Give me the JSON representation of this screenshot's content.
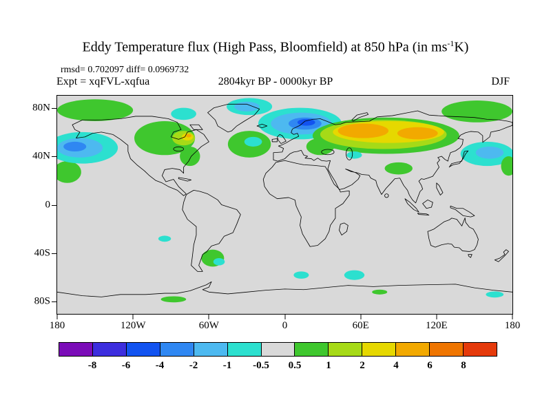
{
  "title": {
    "prefix": "Eddy Temperature flux (High Pass, Bloomfield) at 850 hPa (in ms",
    "superscript": "-1",
    "suffix": "K)"
  },
  "header": {
    "stats": "rmsd= 0.702097 diff= 0.0969732",
    "experiment": "Expt = xqFVL-xqfua",
    "period": "2804kyr BP - 0000kyr BP",
    "season": "DJF"
  },
  "axes": {
    "lat_ticks": [
      {
        "label": "80N",
        "lat": 80
      },
      {
        "label": "40N",
        "lat": 40
      },
      {
        "label": "0",
        "lat": 0
      },
      {
        "label": "40S",
        "lat": -40
      },
      {
        "label": "80S",
        "lat": -80
      }
    ],
    "lon_ticks": [
      {
        "label": "180",
        "lon": -180
      },
      {
        "label": "120W",
        "lon": -120
      },
      {
        "label": "60W",
        "lon": -60
      },
      {
        "label": "0",
        "lon": 0
      },
      {
        "label": "60E",
        "lon": 60
      },
      {
        "label": "120E",
        "lon": 120
      },
      {
        "label": "180",
        "lon": 180
      }
    ]
  },
  "map": {
    "projection": "equirectangular",
    "lon_range": [
      -180,
      180
    ],
    "lat_range": [
      -90,
      90
    ],
    "background_color": "#d9d9d9"
  },
  "chart_data": {
    "type": "heatmap",
    "title": "Eddy Temperature flux (High Pass, Bloomfield) at 850 hPa (in ms-1K)",
    "variable": "Eddy Temperature flux (High Pass, Bloomfield)",
    "pressure_level_hpa": 850,
    "units": "ms-1K",
    "season": "DJF",
    "experiment": "xqFVL-xqfua",
    "period": "2804kyr BP - 0000kyr BP",
    "rmsd": 0.702097,
    "diff": 0.0969732,
    "colorbar": {
      "boundaries": [
        -8,
        -6,
        -4,
        -2,
        -1,
        -0.5,
        0.5,
        1,
        2,
        4,
        6,
        8
      ],
      "labels": [
        "-8",
        "-6",
        "-4",
        "-2",
        "-1",
        "-0.5",
        "0.5",
        "1",
        "2",
        "4",
        "6",
        "8"
      ],
      "colors": [
        "#7b0cb8",
        "#3d2ede",
        "#1253f0",
        "#2f87f2",
        "#4db9f0",
        "#2ce0cf",
        "#d9d9d9",
        "#3fc72e",
        "#a6da17",
        "#e6d800",
        "#f2a900",
        "#ef7500",
        "#e53a0b"
      ]
    },
    "anomaly_regions": [
      {
        "name": "npac-arctic-green",
        "lon": -150,
        "lat": 78,
        "rx": 30,
        "ry": 9,
        "level": 7,
        "range": "0.5 to 1"
      },
      {
        "name": "npac-subtrop-green",
        "lon": -172,
        "lat": 27,
        "rx": 11,
        "ry": 9,
        "level": 7,
        "range": "0.5 to 1"
      },
      {
        "name": "npac-cyan",
        "lon": -160,
        "lat": 47,
        "rx": 28,
        "ry": 13,
        "level": 5,
        "range": "-1 to -0.5"
      },
      {
        "name": "npac-lightblue",
        "lon": -162,
        "lat": 47,
        "rx": 18,
        "ry": 8,
        "level": 4,
        "range": "-2 to -1"
      },
      {
        "name": "npac-blue",
        "lon": -166,
        "lat": 48,
        "rx": 9,
        "ry": 4,
        "level": 3,
        "range": "-4 to -2"
      },
      {
        "name": "canada-green",
        "lon": -95,
        "lat": 55,
        "rx": 24,
        "ry": 14,
        "level": 7,
        "range": "0.5 to 1"
      },
      {
        "name": "us-east-green",
        "lon": -75,
        "lat": 40,
        "rx": 8,
        "ry": 8,
        "level": 7,
        "range": "0.5 to 1"
      },
      {
        "name": "quebec-yellowgreen",
        "lon": -80,
        "lat": 55,
        "rx": 9,
        "ry": 6,
        "level": 8,
        "range": "1 to 2"
      },
      {
        "name": "labrador-yellow",
        "lon": -77,
        "lat": 56,
        "rx": 4.5,
        "ry": 3,
        "level": 9,
        "range": "2 to 4"
      },
      {
        "name": "labrador-orange-spot",
        "lon": -76,
        "lat": 57,
        "rx": 2.2,
        "ry": 1.4,
        "level": 10,
        "range": "4 to 6"
      },
      {
        "name": "arctic-canada-cyan",
        "lon": -80,
        "lat": 75,
        "rx": 10,
        "ry": 5,
        "level": 5,
        "range": "-1 to -0.5"
      },
      {
        "name": "greenland-cyan",
        "lon": -28,
        "lat": 81,
        "rx": 18,
        "ry": 7,
        "level": 5,
        "range": "-1 to -0.5"
      },
      {
        "name": "greenland-lightblue",
        "lon": -30,
        "lat": 81,
        "rx": 10,
        "ry": 4,
        "level": 4,
        "range": "-2 to -1"
      },
      {
        "name": "natlantic-green",
        "lon": -28,
        "lat": 50,
        "rx": 17,
        "ry": 11,
        "level": 7,
        "range": "0.5 to 1"
      },
      {
        "name": "natlantic-cyan",
        "lon": -25,
        "lat": 52,
        "rx": 7,
        "ry": 4,
        "level": 5,
        "range": "-1 to -0.5"
      },
      {
        "name": "europe-cyan",
        "lon": 12,
        "lat": 67,
        "rx": 33,
        "ry": 13,
        "level": 5,
        "range": "-1 to -0.5"
      },
      {
        "name": "europe-lightblue",
        "lon": 13,
        "lat": 67,
        "rx": 24,
        "ry": 9,
        "level": 4,
        "range": "-2 to -1"
      },
      {
        "name": "scandinavia-blue",
        "lon": 16,
        "lat": 67,
        "rx": 13,
        "ry": 5,
        "level": 3,
        "range": "-4 to -2"
      },
      {
        "name": "scandinavia-darkblue",
        "lon": 17,
        "lat": 68,
        "rx": 7,
        "ry": 2.8,
        "level": 2,
        "range": "-6 to -4"
      },
      {
        "name": "eurasia-green",
        "lon": 80,
        "lat": 57,
        "rx": 58,
        "ry": 15,
        "level": 7,
        "range": "0.5 to 1"
      },
      {
        "name": "easteurope-green",
        "lon": 28,
        "lat": 48,
        "rx": 11,
        "ry": 7,
        "level": 7,
        "range": "0.5 to 1"
      },
      {
        "name": "eurasia-yellowgreen",
        "lon": 78,
        "lat": 58,
        "rx": 50,
        "ry": 12,
        "level": 8,
        "range": "1 to 2"
      },
      {
        "name": "eurasia-yellow",
        "lon": 82,
        "lat": 60,
        "rx": 44,
        "ry": 9,
        "level": 9,
        "range": "2 to 4"
      },
      {
        "name": "wsiberia-orange",
        "lon": 62,
        "lat": 61,
        "rx": 20,
        "ry": 6,
        "level": 10,
        "range": "4 to 6"
      },
      {
        "name": "esiberia-orange",
        "lon": 105,
        "lat": 59,
        "rx": 16,
        "ry": 5,
        "level": 10,
        "range": "4 to 6"
      },
      {
        "name": "caspian-cyan",
        "lon": 55,
        "lat": 41,
        "rx": 6,
        "ry": 3,
        "level": 5,
        "range": "-1 to -0.5"
      },
      {
        "name": "tibet-green",
        "lon": 90,
        "lat": 30,
        "rx": 11,
        "ry": 5,
        "level": 7,
        "range": "0.5 to 1"
      },
      {
        "name": "wpac-arctic-green",
        "lon": 152,
        "lat": 77,
        "rx": 28,
        "ry": 9,
        "level": 7,
        "range": "0.5 to 1"
      },
      {
        "name": "japan-kuril-cyan",
        "lon": 160,
        "lat": 42,
        "rx": 21,
        "ry": 10,
        "level": 5,
        "range": "-1 to -0.5"
      },
      {
        "name": "japan-kuril-lightblue",
        "lon": 162,
        "lat": 43,
        "rx": 11,
        "ry": 5,
        "level": 4,
        "range": "-2 to -1"
      },
      {
        "name": "wpac-green-edge",
        "lon": 177,
        "lat": 32,
        "rx": 6,
        "ry": 8,
        "level": 7,
        "range": "0.5 to 1"
      },
      {
        "name": "falklands-green",
        "lon": -57,
        "lat": -44,
        "rx": 9,
        "ry": 7,
        "level": 7,
        "range": "0.5 to 1"
      },
      {
        "name": "falklands-cyan",
        "lon": -52,
        "lat": -47,
        "rx": 4.5,
        "ry": 3,
        "level": 5,
        "range": "-1 to -0.5"
      },
      {
        "name": "satlantic-cyan",
        "lon": 13,
        "lat": -58,
        "rx": 6,
        "ry": 3,
        "level": 5,
        "range": "-1 to -0.5"
      },
      {
        "name": "sindian-cyan",
        "lon": 55,
        "lat": -58,
        "rx": 8,
        "ry": 4,
        "level": 5,
        "range": "-1 to -0.5"
      },
      {
        "name": "sepacific-cyan",
        "lon": -95,
        "lat": -28,
        "rx": 5,
        "ry": 2.5,
        "level": 5,
        "range": "-1 to -0.5"
      },
      {
        "name": "antarctic-green-west",
        "lon": -88,
        "lat": -78,
        "rx": 10,
        "ry": 2.5,
        "level": 7,
        "range": "0.5 to 1"
      },
      {
        "name": "antarctic-green-east",
        "lon": 75,
        "lat": -72,
        "rx": 6,
        "ry": 2,
        "level": 7,
        "range": "0.5 to 1"
      },
      {
        "name": "rosssea-cyan",
        "lon": 166,
        "lat": -74,
        "rx": 7,
        "ry": 2.5,
        "level": 5,
        "range": "-1 to -0.5"
      }
    ]
  }
}
